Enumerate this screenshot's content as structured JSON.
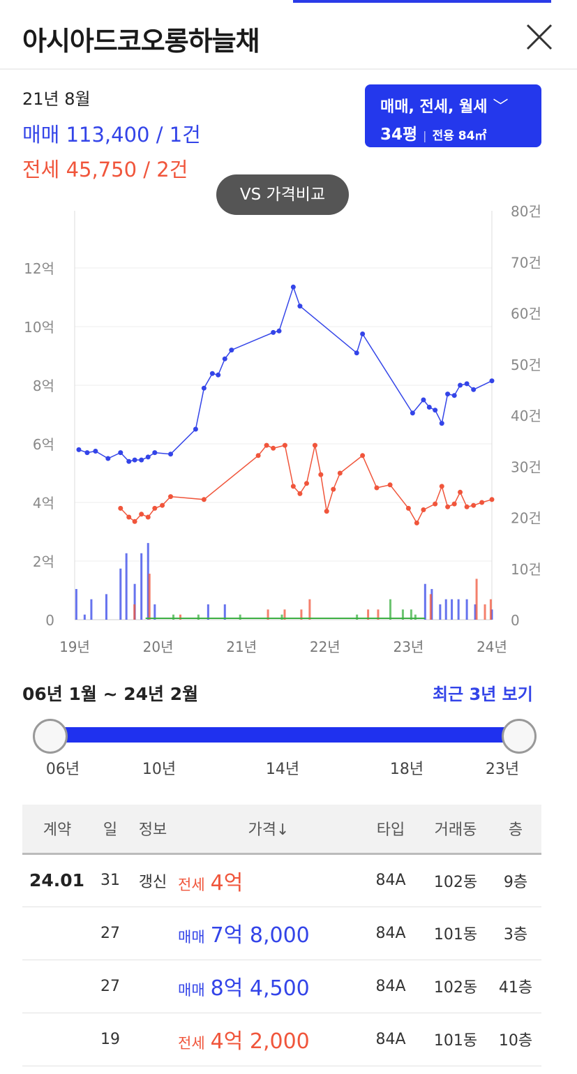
{
  "header": {
    "title": "아시아드코오롱하늘채"
  },
  "summary": {
    "date": "21년 8월",
    "sale": "매매 113,400 / 1건",
    "jeonse": "전세 45,750 / 2건"
  },
  "filter": {
    "types": "매매, 전세, 월세",
    "size": "34평",
    "area": "전용 84㎡"
  },
  "vs_button": "VS 가격비교",
  "colors": {
    "sale": "#3344e8",
    "jeonse": "#f0553b",
    "monthly": "#3cb043",
    "accent": "#2438ec"
  },
  "chart_data": {
    "type": "line",
    "x_ticks": [
      "19년",
      "20년",
      "21년",
      "22년",
      "23년",
      "24년"
    ],
    "x_range": [
      2019.0,
      2024.0
    ],
    "y_left": {
      "ticks": [
        "0",
        "2억",
        "4억",
        "6억",
        "8억",
        "10억",
        "12억"
      ],
      "range": [
        0,
        13
      ]
    },
    "y_right": {
      "ticks": [
        "0",
        "10건",
        "20건",
        "30건",
        "40건",
        "50건",
        "60건",
        "70건",
        "80건"
      ],
      "range": [
        0,
        80
      ]
    },
    "grid": true,
    "series": [
      {
        "kind": "line",
        "values": [
          [
            2019.05,
            5.8
          ],
          [
            2019.15,
            5.7
          ],
          [
            2019.25,
            5.75
          ],
          [
            2019.4,
            5.5
          ],
          [
            2019.55,
            5.7
          ],
          [
            2019.65,
            5.4
          ],
          [
            2019.72,
            5.45
          ],
          [
            2019.8,
            5.45
          ],
          [
            2019.88,
            5.55
          ],
          [
            2019.96,
            5.7
          ],
          [
            2020.15,
            5.65
          ],
          [
            2020.45,
            6.5
          ],
          [
            2020.55,
            7.9
          ],
          [
            2020.65,
            8.4
          ],
          [
            2020.72,
            8.35
          ],
          [
            2020.8,
            8.9
          ],
          [
            2020.88,
            9.2
          ],
          [
            2021.38,
            9.8
          ],
          [
            2021.45,
            9.85
          ],
          [
            2021.62,
            11.35
          ],
          [
            2021.7,
            10.7
          ],
          [
            2022.38,
            9.1
          ],
          [
            2022.45,
            9.75
          ],
          [
            2023.05,
            7.05
          ],
          [
            2023.18,
            7.5
          ],
          [
            2023.25,
            7.25
          ],
          [
            2023.32,
            7.15
          ],
          [
            2023.4,
            6.7
          ],
          [
            2023.47,
            7.7
          ],
          [
            2023.55,
            7.65
          ],
          [
            2023.62,
            8.0
          ],
          [
            2023.7,
            8.05
          ],
          [
            2023.78,
            7.85
          ],
          [
            2024.0,
            8.15
          ]
        ]
      },
      {
        "kind": "line",
        "values": [
          [
            2019.55,
            3.8
          ],
          [
            2019.65,
            3.5
          ],
          [
            2019.72,
            3.35
          ],
          [
            2019.8,
            3.6
          ],
          [
            2019.88,
            3.5
          ],
          [
            2019.96,
            3.8
          ],
          [
            2020.05,
            3.9
          ],
          [
            2020.15,
            4.2
          ],
          [
            2020.55,
            4.1
          ],
          [
            2021.2,
            5.6
          ],
          [
            2021.3,
            5.95
          ],
          [
            2021.38,
            5.85
          ],
          [
            2021.52,
            5.95
          ],
          [
            2021.62,
            4.55
          ],
          [
            2021.7,
            4.3
          ],
          [
            2021.78,
            4.65
          ],
          [
            2021.88,
            5.95
          ],
          [
            2021.95,
            4.95
          ],
          [
            2022.02,
            3.7
          ],
          [
            2022.1,
            4.45
          ],
          [
            2022.18,
            5.0
          ],
          [
            2022.45,
            5.6
          ],
          [
            2022.62,
            4.5
          ],
          [
            2022.78,
            4.6
          ],
          [
            2023.0,
            3.8
          ],
          [
            2023.1,
            3.3
          ],
          [
            2023.18,
            3.75
          ],
          [
            2023.32,
            3.95
          ],
          [
            2023.4,
            4.55
          ],
          [
            2023.47,
            3.85
          ],
          [
            2023.55,
            3.95
          ],
          [
            2023.62,
            4.35
          ],
          [
            2023.7,
            3.85
          ],
          [
            2023.78,
            3.9
          ],
          [
            2023.88,
            4.0
          ],
          [
            2024.0,
            4.1
          ]
        ]
      }
    ],
    "volume_sale": [
      [
        2019.02,
        6
      ],
      [
        2019.12,
        1
      ],
      [
        2019.2,
        4
      ],
      [
        2019.38,
        5
      ],
      [
        2019.55,
        10
      ],
      [
        2019.62,
        13
      ],
      [
        2019.72,
        7
      ],
      [
        2019.8,
        13
      ],
      [
        2019.88,
        15
      ],
      [
        2019.96,
        3
      ],
      [
        2020.6,
        3
      ],
      [
        2020.8,
        3
      ],
      [
        2023.2,
        7
      ],
      [
        2023.28,
        6
      ],
      [
        2023.38,
        3
      ],
      [
        2023.45,
        4
      ],
      [
        2023.52,
        4
      ],
      [
        2023.6,
        4
      ],
      [
        2023.7,
        4
      ],
      [
        2023.8,
        3
      ],
      [
        2024.0,
        2
      ]
    ],
    "volume_jeonse": [
      [
        2019.7,
        3
      ],
      [
        2019.88,
        9
      ],
      [
        2020.25,
        1
      ],
      [
        2021.3,
        2
      ],
      [
        2021.5,
        2
      ],
      [
        2021.7,
        2
      ],
      [
        2021.8,
        4
      ],
      [
        2022.5,
        2
      ],
      [
        2022.62,
        2
      ],
      [
        2023.25,
        5
      ],
      [
        2023.8,
        8
      ],
      [
        2023.9,
        3
      ],
      [
        2023.97,
        4
      ]
    ],
    "volume_monthly": [
      [
        2020.2,
        1
      ],
      [
        2020.5,
        1
      ],
      [
        2021.0,
        1
      ],
      [
        2021.5,
        1
      ],
      [
        2022.4,
        1
      ],
      [
        2022.8,
        4
      ],
      [
        2022.95,
        2
      ],
      [
        2023.05,
        2
      ],
      [
        2023.1,
        1
      ]
    ]
  },
  "range": {
    "label": "06년 1월 ~ 24년 2월",
    "recent": "최근 3년 보기",
    "ticks": [
      "06년",
      "10년",
      "14년",
      "18년",
      "23년"
    ]
  },
  "table": {
    "headers": [
      "계약",
      "일",
      "정보",
      "가격↓",
      "타입",
      "거래동",
      "층"
    ],
    "rows": [
      {
        "ym": "24.01",
        "day": "31",
        "info": "갱신",
        "ptype": "전세",
        "price": "4억",
        "kind": "jeonse",
        "type": "84A",
        "dong": "102동",
        "floor": "9층"
      },
      {
        "ym": "",
        "day": "27",
        "info": "",
        "ptype": "매매",
        "price": "7억 8,000",
        "kind": "sale",
        "type": "84A",
        "dong": "101동",
        "floor": "3층"
      },
      {
        "ym": "",
        "day": "27",
        "info": "",
        "ptype": "매매",
        "price": "8억 4,500",
        "kind": "sale",
        "type": "84A",
        "dong": "102동",
        "floor": "41층"
      },
      {
        "ym": "",
        "day": "19",
        "info": "",
        "ptype": "전세",
        "price": "4억 2,000",
        "kind": "jeonse",
        "type": "84A",
        "dong": "101동",
        "floor": "10층"
      }
    ]
  }
}
